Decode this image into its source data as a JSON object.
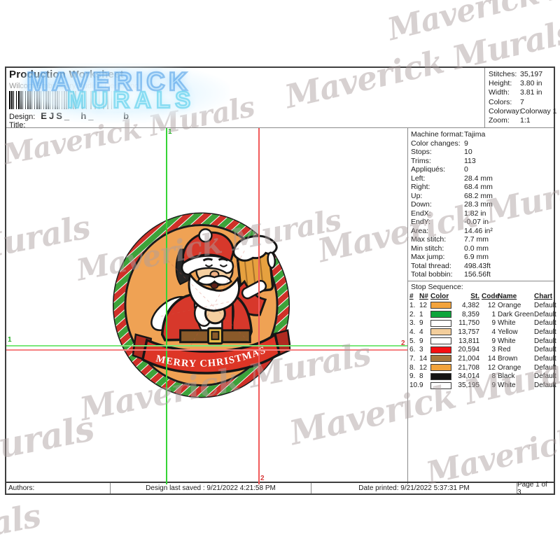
{
  "header": {
    "title": "Production Worksheet",
    "subtitle": "Wilcom EmbroideryStudio - Designing",
    "design_label": "Design:",
    "design_value": "EJS_  h_      b",
    "title_label": "Title:",
    "stats": [
      {
        "label": "Stitches:",
        "value": "35,197"
      },
      {
        "label": "Height:",
        "value": "3.80 in"
      },
      {
        "label": "Width:",
        "value": "3.81 in"
      },
      {
        "label": "Colors:",
        "value": "7"
      },
      {
        "label": "Colorway:",
        "value": "Colorway 1"
      },
      {
        "label": "Zoom:",
        "value": "1:1"
      }
    ]
  },
  "panel": {
    "details": [
      {
        "label": "Machine format:",
        "value": "Tajima"
      },
      {
        "label": "Color changes:",
        "value": "9"
      },
      {
        "label": "Stops:",
        "value": "10"
      },
      {
        "label": "Trims:",
        "value": "113"
      },
      {
        "label": "Appliqués:",
        "value": "0"
      },
      {
        "label": "Left:",
        "value": "28.4 mm"
      },
      {
        "label": "Right:",
        "value": "68.4 mm"
      },
      {
        "label": "Up:",
        "value": "68.2 mm"
      },
      {
        "label": "Down:",
        "value": "28.3 mm"
      },
      {
        "label": "EndX:",
        "value": "1.82 in"
      },
      {
        "label": "EndY:",
        "value": "-0.07 in"
      },
      {
        "label": "Area:",
        "value": "14.46 in²"
      },
      {
        "label": "Max stitch:",
        "value": "7.7 mm"
      },
      {
        "label": "Min stitch:",
        "value": "0.0 mm"
      },
      {
        "label": "Max jump:",
        "value": "6.9 mm"
      },
      {
        "label": "Total thread:",
        "value": "498.43ft"
      },
      {
        "label": "Total bobbin:",
        "value": "156.56ft"
      }
    ],
    "stop_sequence": {
      "title": "Stop Sequence:",
      "columns": [
        "#",
        "N#",
        "Color",
        "St.",
        "Code",
        "Name",
        "Chart"
      ],
      "rows": [
        {
          "num": "1.",
          "n": "12",
          "color": "#F2A33C",
          "st": "4,382",
          "code": "12",
          "name": "Orange",
          "chart": "Default"
        },
        {
          "num": "2.",
          "n": "1",
          "color": "#0EA53C",
          "st": "8,359",
          "code": "1",
          "name": "Dark Green",
          "chart": "Default"
        },
        {
          "num": "3.",
          "n": "9",
          "color": "#FFFFFF",
          "st": "11,750",
          "code": "9",
          "name": "White",
          "chart": "Default"
        },
        {
          "num": "4.",
          "n": "4",
          "color": "#F3CE9C",
          "st": "13,757",
          "code": "4",
          "name": "Yellow",
          "chart": "Default"
        },
        {
          "num": "5.",
          "n": "9",
          "color": "#FFFFFF",
          "st": "13,811",
          "code": "9",
          "name": "White",
          "chart": "Default"
        },
        {
          "num": "6.",
          "n": "3",
          "color": "#F50F12",
          "st": "20,594",
          "code": "3",
          "name": "Red",
          "chart": "Default"
        },
        {
          "num": "7.",
          "n": "14",
          "color": "#A5783E",
          "st": "21,004",
          "code": "14",
          "name": "Brown",
          "chart": "Default"
        },
        {
          "num": "8.",
          "n": "12",
          "color": "#F2A33C",
          "st": "21,708",
          "code": "12",
          "name": "Orange",
          "chart": "Default"
        },
        {
          "num": "9.",
          "n": "8",
          "color": "#141414",
          "st": "34,014",
          "code": "8",
          "name": "Black",
          "chart": "Default"
        },
        {
          "num": "10.",
          "n": "9",
          "color": "#FFFFFF",
          "st": "35,195",
          "code": "9",
          "name": "White",
          "chart": "Default"
        }
      ]
    }
  },
  "design": {
    "banner_text": "MERRY CHRISTMAS",
    "palette": {
      "ring_red": "#cf3028",
      "ring_green": "#3da23a",
      "background_orange": "#efa254",
      "coat_red": "#d7382b",
      "skin_tan": "#f5cfa0",
      "belt_brown": "#8a5a2a",
      "mug_amber": "#e6a13f",
      "buckle_gold": "#e8bb45"
    }
  },
  "guides": {
    "v_green_label": "1",
    "v_red_label": "2",
    "h_green_label": "1",
    "h_red_label": "2"
  },
  "footer": {
    "authors": "Authors:",
    "saved": "Design last saved : 9/21/2022 4:21:58 PM",
    "printed": "Date printed: 9/21/2022 5:37:31 PM",
    "page": "Page 1 of 3"
  },
  "watermark": {
    "big_line1": "MAVERICK",
    "big_line2": "MURALS",
    "script_text": "Maverick Murals",
    "script_partial1": "Murals",
    "script_partial2": "als"
  }
}
